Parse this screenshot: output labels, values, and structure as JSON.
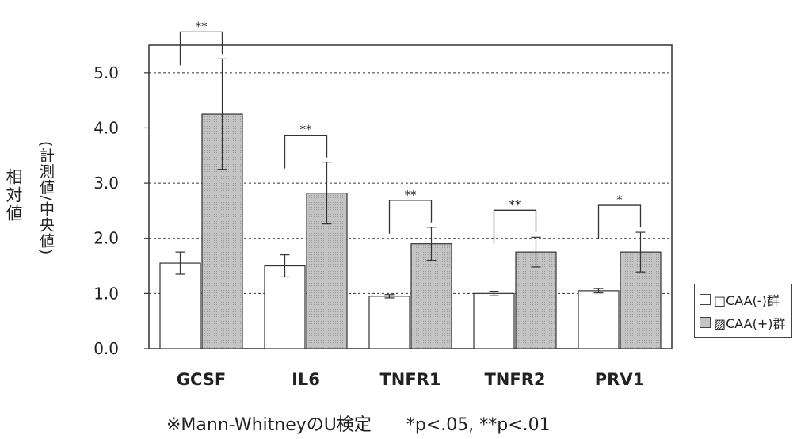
{
  "chart_data": {
    "type": "bar",
    "categories": [
      "GCSF",
      "IL6",
      "TNFR1",
      "TNFR2",
      "PRV1"
    ],
    "series": [
      {
        "name": "□CAA(-)群",
        "values": [
          1.55,
          1.5,
          0.95,
          1.0,
          1.05
        ],
        "errors": [
          0.2,
          0.2,
          0.03,
          0.04,
          0.04
        ],
        "color": "#ffffff"
      },
      {
        "name": "▨CAA(+)群",
        "values": [
          4.25,
          2.82,
          1.9,
          1.75,
          1.75
        ],
        "errors": [
          1.0,
          0.56,
          0.3,
          0.27,
          0.36
        ],
        "color": "#c4c4c4"
      }
    ],
    "significance": [
      "**",
      "**",
      "**",
      "**",
      "*"
    ],
    "ylim": [
      0,
      5.5
    ],
    "yticks": [
      "0.0",
      "1.0",
      "2.0",
      "3.0",
      "4.0",
      "5.0"
    ],
    "ylabel": "相対値",
    "ylabel_sub": "(計測値/中央値)",
    "grid": "dashed horizontal",
    "legend_position": "right",
    "footnote": "※Mann-WhitneyのU検定　　*p<.05, **p<.01"
  }
}
